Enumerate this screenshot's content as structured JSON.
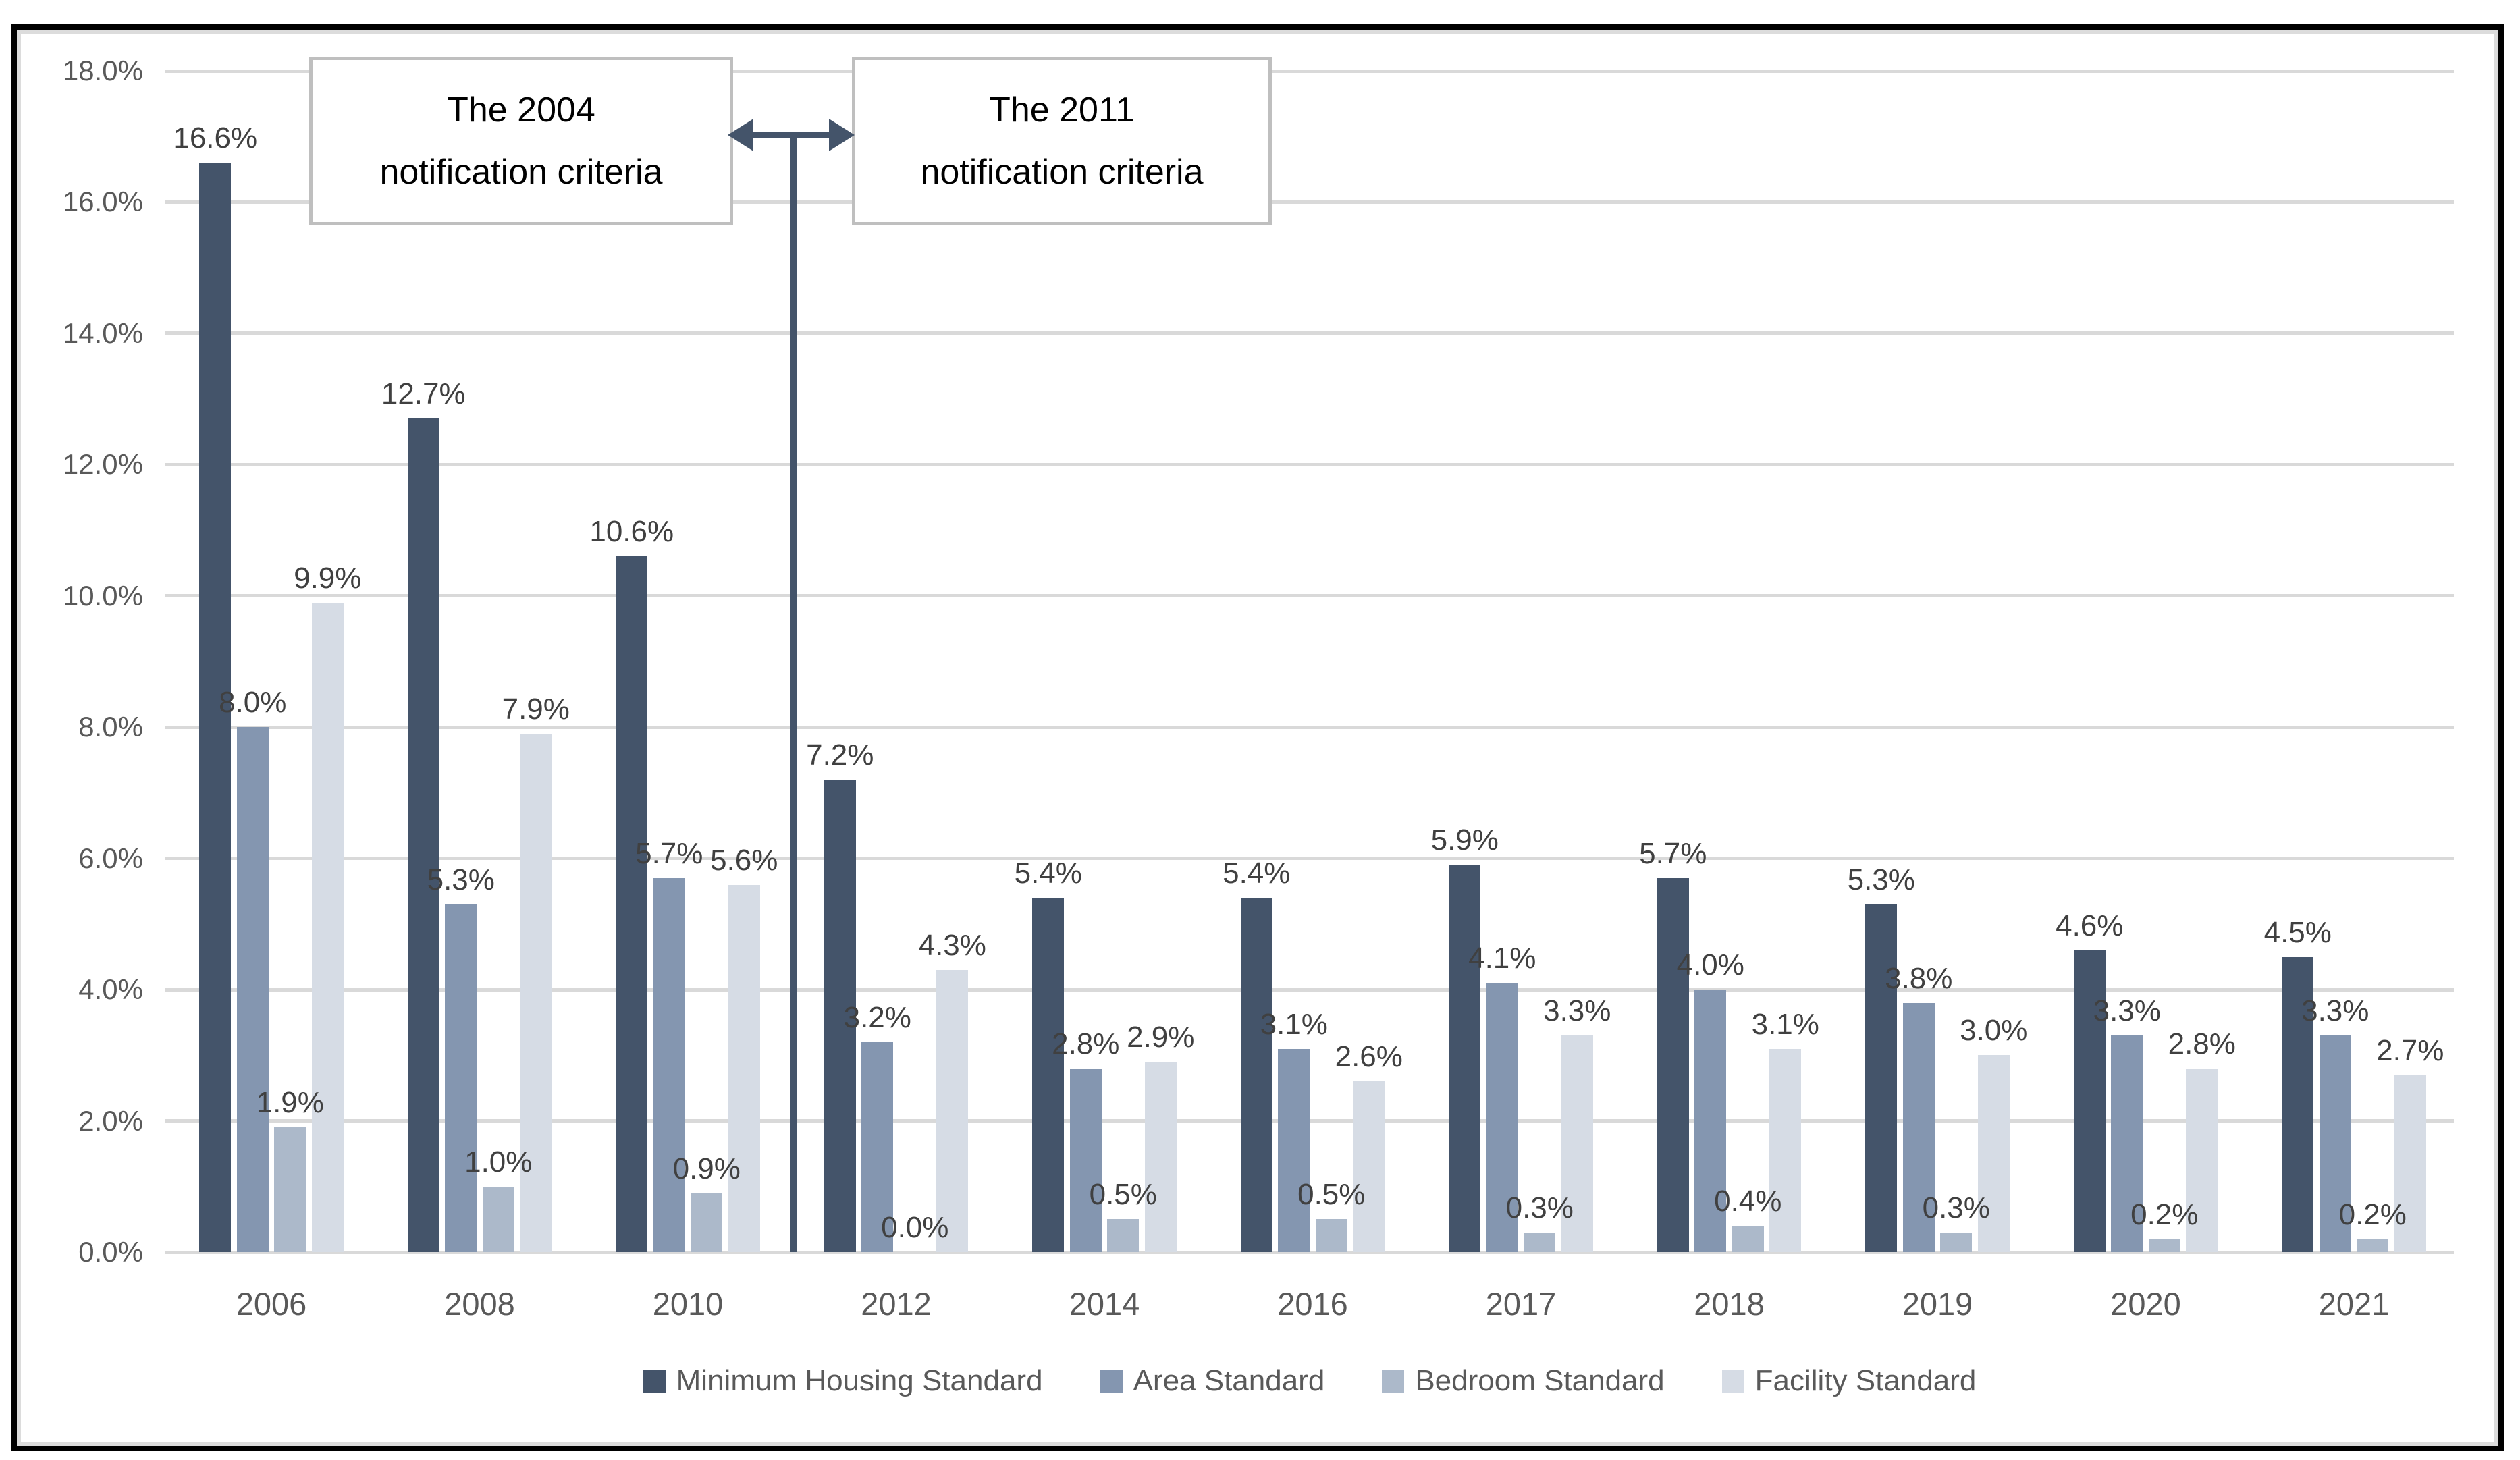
{
  "chart_data": {
    "type": "bar",
    "title": "",
    "xlabel": "",
    "ylabel": "",
    "categories": [
      "2006",
      "2008",
      "2010",
      "2012",
      "2014",
      "2016",
      "2017",
      "2018",
      "2019",
      "2020",
      "2021"
    ],
    "series": [
      {
        "name": "Minimum Housing Standard",
        "color": "#44546A",
        "values": [
          16.6,
          12.7,
          10.6,
          7.2,
          5.4,
          5.4,
          5.9,
          5.7,
          5.3,
          4.6,
          4.5
        ]
      },
      {
        "name": "Area Standard",
        "color": "#8496B0",
        "values": [
          8.0,
          5.3,
          5.7,
          3.2,
          2.8,
          3.1,
          4.1,
          4.0,
          3.8,
          3.3,
          3.3
        ]
      },
      {
        "name": "Bedroom Standard",
        "color": "#ACB9CA",
        "values": [
          1.9,
          1.0,
          0.9,
          0.0,
          0.5,
          0.5,
          0.3,
          0.4,
          0.3,
          0.2,
          0.2
        ]
      },
      {
        "name": "Facility Standard",
        "color": "#D6DCE5",
        "values": [
          9.9,
          7.9,
          5.6,
          4.3,
          2.9,
          2.6,
          3.3,
          3.1,
          3.0,
          2.8,
          2.7
        ]
      }
    ],
    "y_ticks": [
      "18.0%",
      "16.0%",
      "14.0%",
      "12.0%",
      "10.0%",
      "8.0%",
      "6.0%",
      "4.0%",
      "2.0%",
      "0.0%"
    ],
    "y_tick_values": [
      18,
      16,
      14,
      12,
      10,
      8,
      6,
      4,
      2,
      0
    ],
    "ylim": [
      0,
      18
    ],
    "grid": true,
    "legend_position": "bottom",
    "data_labels": true,
    "data_label_format": "0.0%"
  },
  "annotations": {
    "left_box": {
      "line1": "The 2004",
      "line2": "notification criteria"
    },
    "right_box": {
      "line1": "The 2011",
      "line2": "notification criteria"
    },
    "divider_between_categories": [
      "2010",
      "2012"
    ]
  },
  "colors": {
    "gridline": "#d9d9d9",
    "axis_text": "#595959",
    "data_label_text": "#404040",
    "annotation_line": "#44546A",
    "box_border": "#bfbfbf",
    "frame_border": "#000000"
  }
}
